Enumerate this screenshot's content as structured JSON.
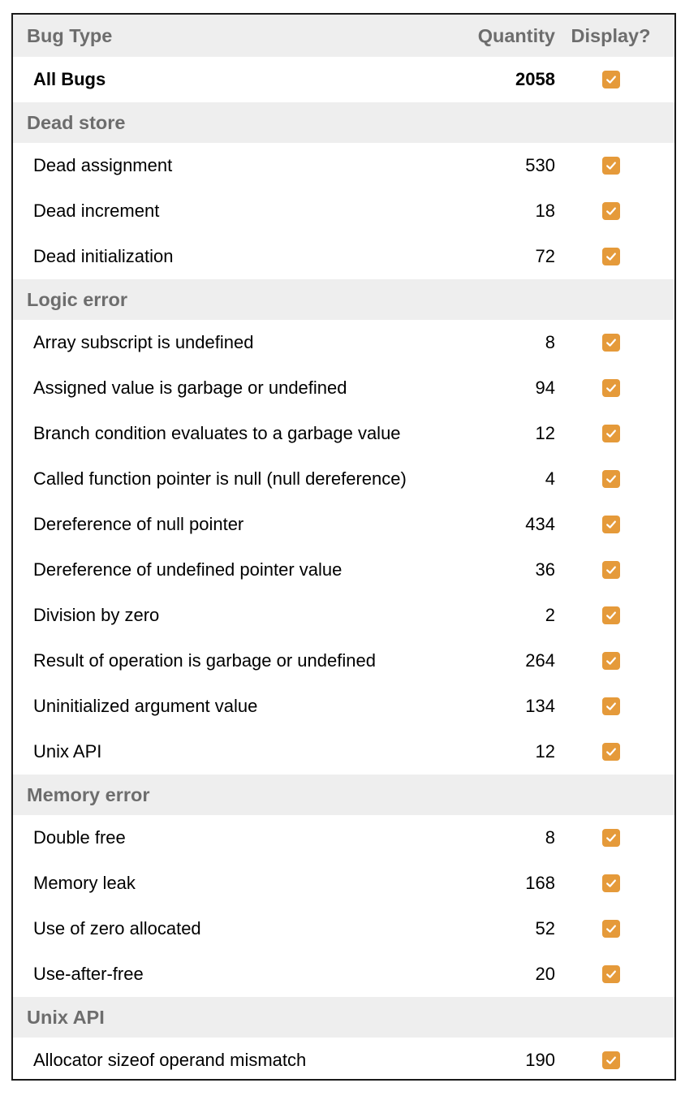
{
  "table": {
    "headers": {
      "bug_type": "Bug Type",
      "quantity": "Quantity",
      "display": "Display?"
    },
    "all_bugs": {
      "label": "All Bugs",
      "quantity": "2058",
      "checked": true
    },
    "categories": [
      {
        "name": "Dead store",
        "bugs": [
          {
            "label": "Dead assignment",
            "quantity": "530",
            "checked": true
          },
          {
            "label": "Dead increment",
            "quantity": "18",
            "checked": true
          },
          {
            "label": "Dead initialization",
            "quantity": "72",
            "checked": true
          }
        ]
      },
      {
        "name": "Logic error",
        "bugs": [
          {
            "label": "Array subscript is undefined",
            "quantity": "8",
            "checked": true
          },
          {
            "label": "Assigned value is garbage or undefined",
            "quantity": "94",
            "checked": true
          },
          {
            "label": "Branch condition evaluates to a garbage value",
            "quantity": "12",
            "checked": true
          },
          {
            "label": "Called function pointer is null (null dereference)",
            "quantity": "4",
            "checked": true
          },
          {
            "label": "Dereference of null pointer",
            "quantity": "434",
            "checked": true
          },
          {
            "label": "Dereference of undefined pointer value",
            "quantity": "36",
            "checked": true
          },
          {
            "label": "Division by zero",
            "quantity": "2",
            "checked": true
          },
          {
            "label": "Result of operation is garbage or undefined",
            "quantity": "264",
            "checked": true
          },
          {
            "label": "Uninitialized argument value",
            "quantity": "134",
            "checked": true
          },
          {
            "label": "Unix API",
            "quantity": "12",
            "checked": true
          }
        ]
      },
      {
        "name": "Memory error",
        "bugs": [
          {
            "label": "Double free",
            "quantity": "8",
            "checked": true
          },
          {
            "label": "Memory leak",
            "quantity": "168",
            "checked": true
          },
          {
            "label": "Use of zero allocated",
            "quantity": "52",
            "checked": true
          },
          {
            "label": "Use-after-free",
            "quantity": "20",
            "checked": true
          }
        ]
      },
      {
        "name": "Unix API",
        "bugs": [
          {
            "label": "Allocator sizeof operand mismatch",
            "quantity": "190",
            "checked": true
          }
        ]
      }
    ]
  },
  "colors": {
    "checkbox_fill": "#e59a3a",
    "header_background": "#eeeeee",
    "header_text": "#6d6d6d",
    "border": "#1a1a1a"
  }
}
